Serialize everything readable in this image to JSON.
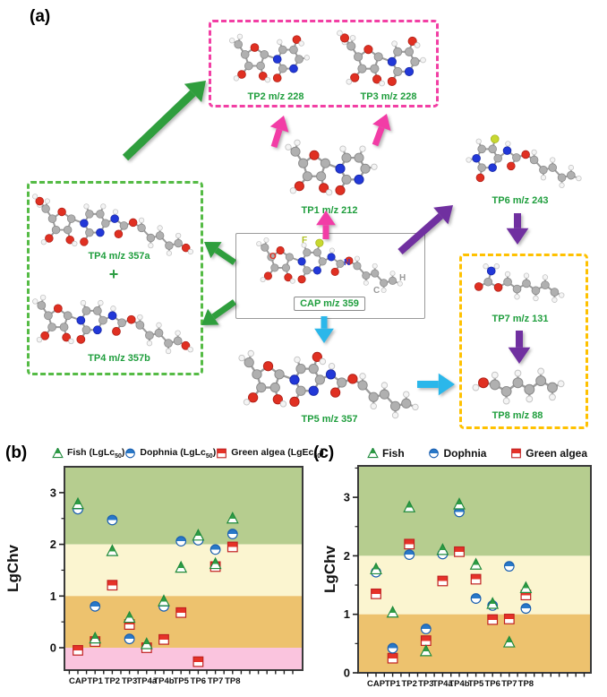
{
  "figure": {
    "panel_a_label": "(a)",
    "panel_b_label": "(b)",
    "panel_c_label": "(c)"
  },
  "pathway": {
    "compounds": {
      "cap": {
        "label": "CAP m/z 359"
      },
      "tp1": {
        "label": "TP1 m/z 212"
      },
      "tp2": {
        "label": "TP2 m/z 228"
      },
      "tp3": {
        "label": "TP3 m/z 228"
      },
      "tp4a": {
        "label": "TP4 m/z 357a"
      },
      "plus": "+",
      "tp4b": {
        "label": "TP4 m/z 357b"
      },
      "tp5": {
        "label": "TP5 m/z 357"
      },
      "tp6": {
        "label": "TP6 m/z 243"
      },
      "tp7": {
        "label": "TP7 m/z 131"
      },
      "tp8": {
        "label": "TP8 m/z 88"
      }
    },
    "cap_atom_letters": {
      "f": "F",
      "o": "O",
      "n": "N",
      "h": "H",
      "c": "C"
    },
    "colors": {
      "label_green": "#1f9e3d",
      "box_pink": "#f23fa4",
      "box_green": "#55bb45",
      "box_yellow": "#ffc100",
      "arrow_green": "#2f9e3d",
      "arrow_magenta": "#f23ca6",
      "arrow_purple": "#7030a0",
      "arrow_cyan": "#2bb7ea"
    }
  },
  "chart_data": [
    {
      "id": "b",
      "type": "scatter",
      "title": "",
      "xlabel": "",
      "ylabel": "LgChv",
      "categories": [
        "CAP",
        "TP1",
        "TP2",
        "TP3",
        "TP4a",
        "TP4b",
        "TP5",
        "TP6",
        "TP7",
        "TP8"
      ],
      "yticks": [
        0,
        1,
        2,
        3
      ],
      "ylim": [
        -0.45,
        3.5
      ],
      "legend_position": "top",
      "grid": false,
      "series": [
        {
          "name": "Fish (LgLc50)",
          "legend": {
            "pre": "Fish (LgLc",
            "sub": "50",
            "post": ")"
          },
          "marker": "triangle",
          "color": "#2e9e44",
          "values": [
            2.78,
            0.18,
            1.87,
            0.58,
            0.07,
            0.9,
            1.55,
            2.17,
            1.62,
            2.5
          ]
        },
        {
          "name": "Dophnia (LgLc50)",
          "legend": {
            "pre": "Dophnia (LgLc",
            "sub": "50",
            "post": ")"
          },
          "marker": "circle",
          "color": "#2878c8",
          "values": [
            2.68,
            0.8,
            2.47,
            0.17,
            null,
            0.8,
            2.06,
            2.08,
            1.9,
            2.2
          ]
        },
        {
          "name": "Green algea (LgEc50)",
          "legend": {
            "pre": "Green algea (LgEc",
            "sub": "50",
            "post": ")"
          },
          "marker": "square",
          "color": "#e63228",
          "values": [
            -0.05,
            0.12,
            1.21,
            0.45,
            0.0,
            0.16,
            0.68,
            -0.27,
            1.57,
            1.95
          ]
        }
      ],
      "bands": [
        {
          "from": 2,
          "to": 3.5,
          "color": "#b6cd8f"
        },
        {
          "from": 1,
          "to": 2,
          "color": "#fbf5d0"
        },
        {
          "from": 0,
          "to": 1,
          "color": "#edc26e"
        },
        {
          "from": -0.45,
          "to": 0,
          "color": "#fac4de"
        }
      ]
    },
    {
      "id": "c",
      "type": "scatter",
      "title": "",
      "xlabel": "",
      "ylabel": "LgChv",
      "categories": [
        "CAP",
        "TP1",
        "TP2",
        "TP3",
        "TP4a",
        "TP4b",
        "TP5",
        "TP6",
        "TP7",
        "TP8"
      ],
      "yticks": [
        0,
        1,
        2,
        3
      ],
      "ylim": [
        0,
        3.55
      ],
      "legend_position": "top",
      "grid": false,
      "series": [
        {
          "name": "Fish",
          "legend": {
            "pre": "Fish",
            "sub": "",
            "post": ""
          },
          "marker": "triangle",
          "color": "#2e9e44",
          "values": [
            1.77,
            1.03,
            2.83,
            0.37,
            2.1,
            2.88,
            1.85,
            1.18,
            0.52,
            1.45
          ]
        },
        {
          "name": "Dophnia",
          "legend": {
            "pre": "Dophnia",
            "sub": "",
            "post": ""
          },
          "marker": "circle",
          "color": "#2878c8",
          "values": [
            1.72,
            0.42,
            2.02,
            0.75,
            2.03,
            2.75,
            1.27,
            1.15,
            1.82,
            1.1
          ]
        },
        {
          "name": "Green algea",
          "legend": {
            "pre": "Green algea",
            "sub": "",
            "post": ""
          },
          "marker": "square",
          "color": "#e63228",
          "values": [
            1.35,
            0.25,
            2.2,
            0.55,
            1.57,
            2.07,
            1.6,
            0.91,
            0.92,
            1.33
          ]
        }
      ],
      "bands": [
        {
          "from": 2,
          "to": 3.55,
          "color": "#b6cd8f"
        },
        {
          "from": 1,
          "to": 2,
          "color": "#fbf5d0"
        },
        {
          "from": 0,
          "to": 1,
          "color": "#edc26e"
        }
      ]
    }
  ]
}
